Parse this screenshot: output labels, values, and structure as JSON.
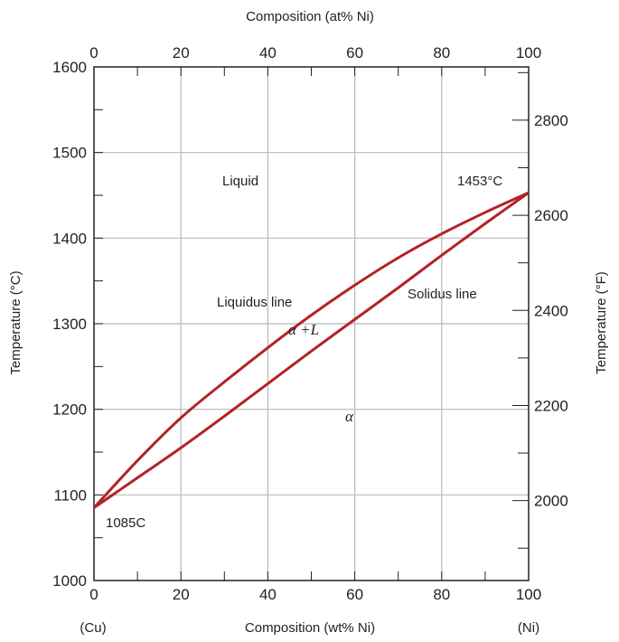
{
  "chart_data": {
    "type": "line",
    "title": "",
    "xlabel": "Composition (wt% Ni)",
    "x2label": "Composition (at% Ni)",
    "ylabel": "Temperature (°C)",
    "y2label": "Temperature (°F)",
    "xlim": [
      0,
      100
    ],
    "ylim": [
      1000,
      1600
    ],
    "y2lim_F": [
      1832,
      2912
    ],
    "x_ticks": [
      "0",
      "20",
      "40",
      "60",
      "80",
      "100"
    ],
    "x2_ticks": [
      "0",
      "20",
      "40",
      "60",
      "80",
      "100"
    ],
    "y_ticks": [
      "1000",
      "1100",
      "1200",
      "1300",
      "1400",
      "1500",
      "1600"
    ],
    "y2_ticks": [
      "2000",
      "2200",
      "2400",
      "2600",
      "2800"
    ],
    "x_end_labels": {
      "left": "(Cu)",
      "right": "(Ni)"
    },
    "grid": true,
    "line_color": "#b22228",
    "series": [
      {
        "name": "Liquidus line",
        "x": [
          0,
          10,
          20,
          30,
          40,
          50,
          60,
          70,
          80,
          90,
          100
        ],
        "y": [
          1085,
          1140,
          1190,
          1232,
          1272,
          1310,
          1345,
          1377,
          1405,
          1430,
          1453
        ]
      },
      {
        "name": "Solidus line",
        "x": [
          0,
          10,
          20,
          30,
          40,
          50,
          60,
          70,
          80,
          90,
          100
        ],
        "y": [
          1085,
          1120,
          1155,
          1192,
          1230,
          1268,
          1305,
          1342,
          1380,
          1417,
          1453
        ]
      }
    ],
    "annotations": {
      "liquid": "Liquid",
      "liquidus": "Liquidus line",
      "solidus": "Solidus line",
      "two_phase": "α +L",
      "alpha": "α",
      "ni_melt": "1453°C",
      "cu_melt": "1085C"
    }
  }
}
